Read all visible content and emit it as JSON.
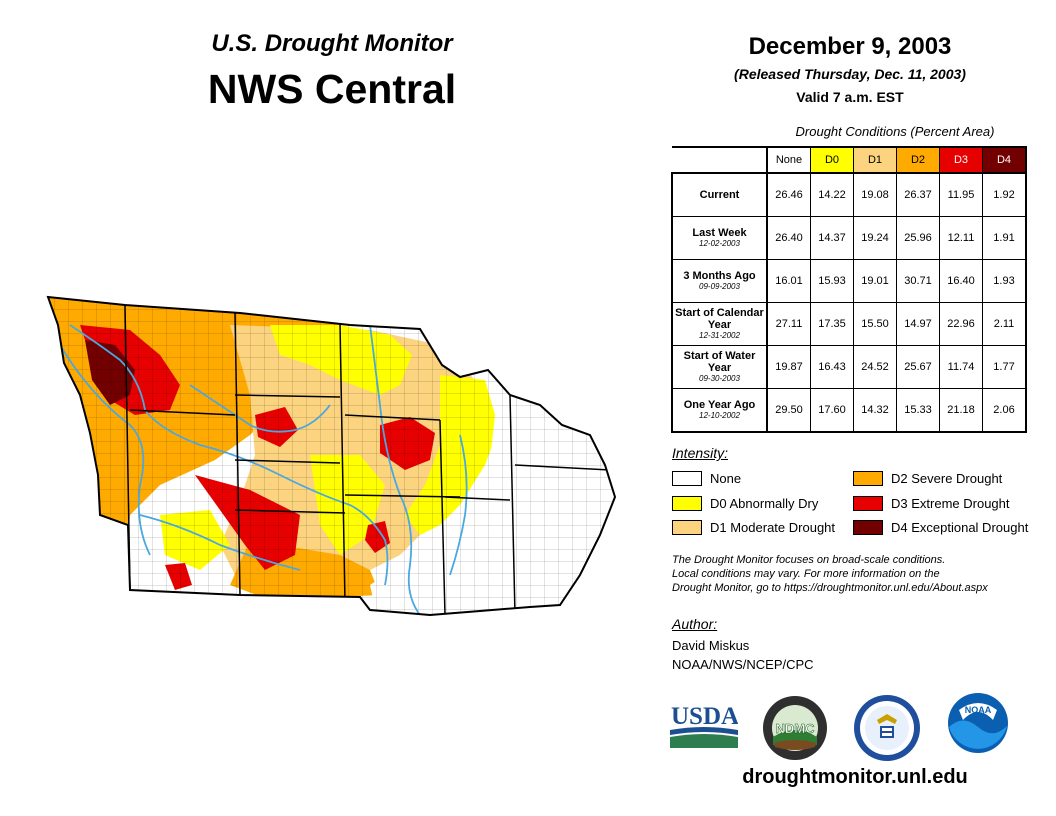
{
  "header": {
    "subtitle": "U.S. Drought Monitor",
    "title": "NWS Central"
  },
  "date": {
    "main": "December 9, 2003",
    "released": "(Released Thursday, Dec. 11, 2003)",
    "valid": "Valid 7 a.m. EST"
  },
  "table": {
    "caption": "Drought Conditions (Percent Area)",
    "columns": [
      "None",
      "D0",
      "D1",
      "D2",
      "D3",
      "D4"
    ],
    "rows": [
      {
        "label": "Current",
        "date": "",
        "values": [
          "26.46",
          "14.22",
          "19.08",
          "26.37",
          "11.95",
          "1.92"
        ]
      },
      {
        "label": "Last Week",
        "date": "12-02-2003",
        "values": [
          "26.40",
          "14.37",
          "19.24",
          "25.96",
          "12.11",
          "1.91"
        ]
      },
      {
        "label": "3 Months Ago",
        "date": "09-09-2003",
        "values": [
          "16.01",
          "15.93",
          "19.01",
          "30.71",
          "16.40",
          "1.93"
        ]
      },
      {
        "label": "Start of Calendar Year",
        "date": "12-31-2002",
        "values": [
          "27.11",
          "17.35",
          "15.50",
          "14.97",
          "22.96",
          "2.11"
        ]
      },
      {
        "label": "Start of Water Year",
        "date": "09-30-2003",
        "values": [
          "19.87",
          "16.43",
          "24.52",
          "25.67",
          "11.74",
          "1.77"
        ]
      },
      {
        "label": "One Year Ago",
        "date": "12-10-2002",
        "values": [
          "29.50",
          "17.60",
          "14.32",
          "15.33",
          "21.18",
          "2.06"
        ]
      }
    ]
  },
  "legend": {
    "title": "Intensity:",
    "items": [
      {
        "label": "None",
        "color": "#ffffff"
      },
      {
        "label": "D0 Abnormally Dry",
        "color": "#ffff00"
      },
      {
        "label": "D1 Moderate Drought",
        "color": "#fcd37f"
      },
      {
        "label": "D2 Severe Drought",
        "color": "#ffaa00"
      },
      {
        "label": "D3 Extreme Drought",
        "color": "#e60000"
      },
      {
        "label": "D4 Exceptional Drought",
        "color": "#730000"
      }
    ]
  },
  "note": {
    "line1": "The Drought Monitor focuses on broad-scale conditions.",
    "line2": "Local conditions may vary. For more information on the",
    "line3": "Drought Monitor, go to https://droughtmonitor.unl.edu/About.aspx"
  },
  "author": {
    "title": "Author:",
    "name": "David Miskus",
    "org": "NOAA/NWS/NCEP/CPC"
  },
  "logos": {
    "usda": "USDA",
    "ndmc": "NDMC",
    "noaa": "NOAA"
  },
  "website": "droughtmonitor.unl.edu",
  "colors": {
    "none": "#ffffff",
    "d0": "#ffff00",
    "d1": "#fcd37f",
    "d2": "#ffaa00",
    "d3": "#e60000",
    "d4": "#730000",
    "river": "#4aa8e0",
    "usda_blue": "#1c4f91",
    "usda_green": "#2e7d4f"
  }
}
